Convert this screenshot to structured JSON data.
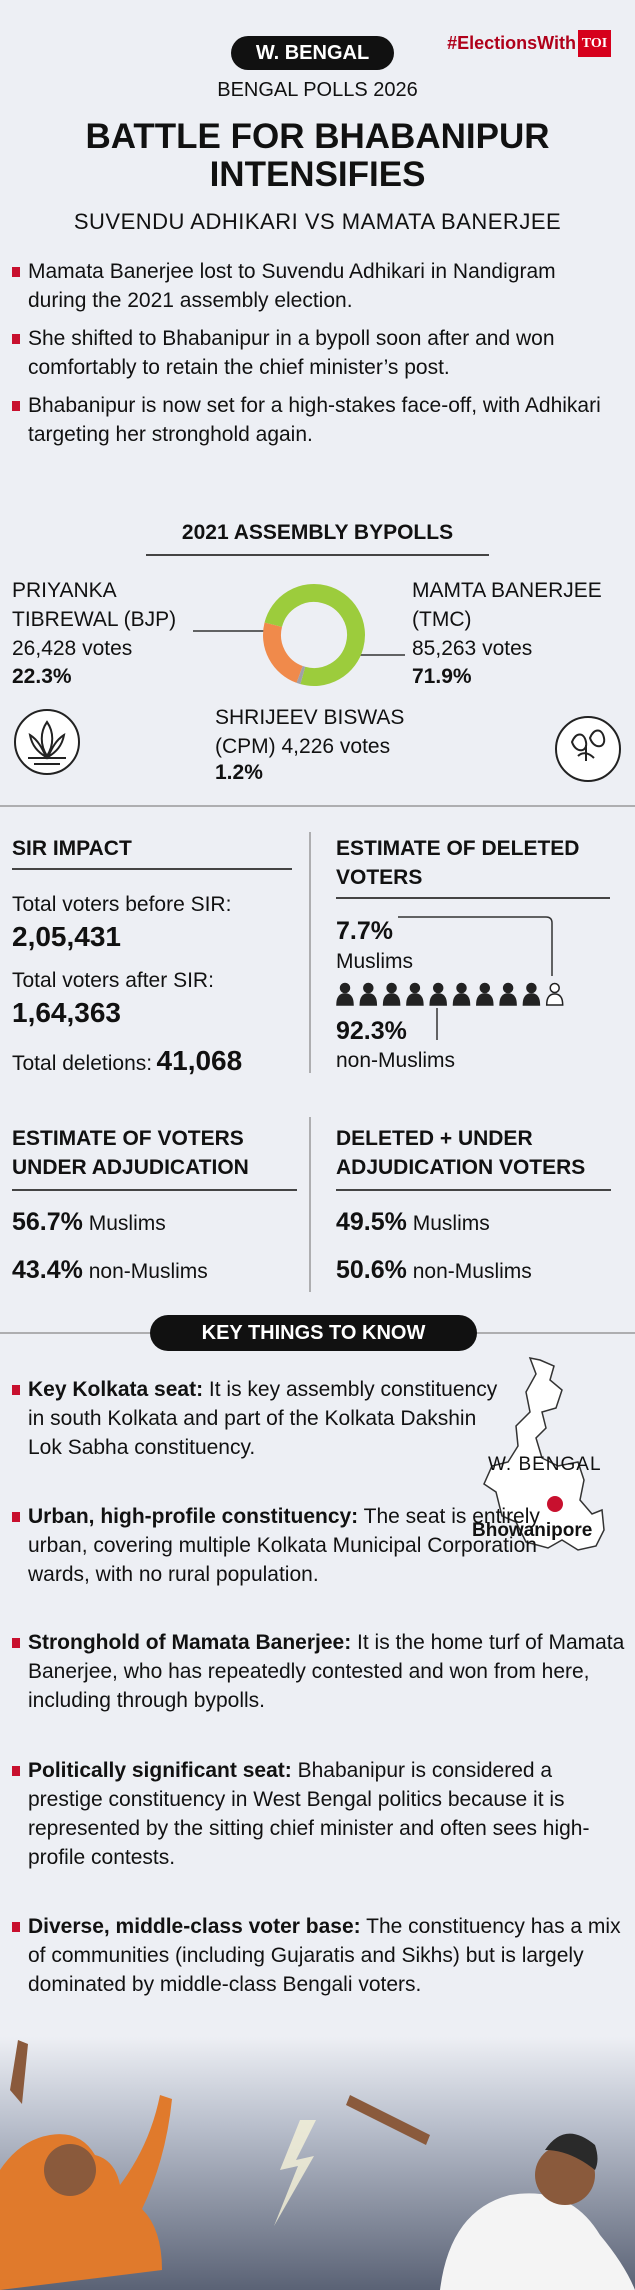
{
  "header": {
    "tag": "W. BENGAL",
    "brand": "#ElectionsWith",
    "brand_logo": "TOI",
    "kicker": "BENGAL POLLS 2026",
    "title": "BATTLE FOR BHABANIPUR INTENSIFIES",
    "subtitle": "SUVENDU ADHIKARI VS MAMATA BANERJEE"
  },
  "intro": [
    "Mamata Banerjee lost to Suvendu Adhikari in Nandigram during the 2021 assembly election.",
    "She shifted to Bhabanipur in a bypoll soon after and won comfortably to retain the chief minister’s post.",
    "Bhabanipur is now set for a high-stakes face-off, with Adhikari targeting her stronghold again."
  ],
  "chart_data": {
    "type": "pie",
    "title": "2021 ASSEMBLY BYPOLLS",
    "categories": [
      "PRIYANKA TIBREWAL (BJP)",
      "MAMTA BANERJEE (TMC)",
      "SHRIJEEV BISWAS (CPM)"
    ],
    "votes": [
      "26,428 votes",
      "85,263 votes",
      "4,226 votes"
    ],
    "values": [
      22.3,
      71.9,
      1.2
    ],
    "value_labels": [
      "22.3%",
      "71.9%",
      "1.2%"
    ],
    "colors": [
      "#f08a4b",
      "#9ccc3c",
      "#a0a0a8"
    ]
  },
  "sir_impact": {
    "title": "SIR IMPACT",
    "before_label": "Total voters before SIR:",
    "before": "2,05,431",
    "after_label": "Total voters after SIR:",
    "after": "1,64,363",
    "deletions_label": "Total deletions:",
    "deletions": "41,068"
  },
  "deleted_estimate": {
    "title": "ESTIMATE OF DELETED VOTERS",
    "muslim_share": "7.7%",
    "muslim_label": "Muslims",
    "other_share": "92.3%",
    "other_label": "non-Muslims"
  },
  "adjudication": {
    "title": "ESTIMATE OF VOTERS UNDER ADJUDICATION",
    "rows": [
      {
        "share": "56.7%",
        "label": "Muslims"
      },
      {
        "share": "43.4%",
        "label": "non-Muslims"
      }
    ]
  },
  "deleted_plus_adjudication": {
    "title": "DELETED + UNDER ADJUDICATION VOTERS",
    "rows": [
      {
        "share": "49.5%",
        "label": "Muslims"
      },
      {
        "share": "50.6%",
        "label": "non-Muslims"
      }
    ]
  },
  "key_things": {
    "title": "KEY THINGS TO KNOW",
    "items": [
      {
        "head": "Key Kolkata seat:",
        "body": "It is key assembly constituency in south Kolkata and part of the Kolkata Dakshin Lok Sabha constituency."
      },
      {
        "head": "Urban, high-profile constituency:",
        "body": "The seat is entirely urban, covering multiple Kolkata Municipal Corporation wards, with no rural population."
      },
      {
        "head": "Stronghold of Mamata Banerjee:",
        "body": "It is the home turf of Mamata Banerjee, who has repeatedly contested and won from here, including through bypolls."
      },
      {
        "head": "Politically significant seat:",
        "body": "Bhabanipur is considered a prestige constituency in West Bengal politics because it is represented by the sitting chief minister and often sees high-profile contests."
      },
      {
        "head": "Diverse, middle-class voter base:",
        "body": "The constituency has a mix of communities (including Gujaratis and Sikhs) but is largely dominated by middle-class Bengali voters."
      }
    ],
    "map": {
      "region": "W. BENGAL",
      "place": "Bhowanipore"
    }
  }
}
